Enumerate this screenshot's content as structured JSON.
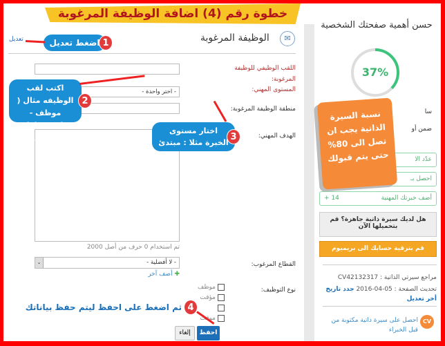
{
  "banner": "خطوة رقم (4) اضافة الوظيفة المرغوبة",
  "section": {
    "title": "الوظيفة المرغوبة",
    "edit_link": "تعديل",
    "icon": "envelope-icon"
  },
  "form": {
    "job_title_label": "اللقب الوظيفي للوظيفة المرغوبة:",
    "job_title_value": "",
    "career_level_label": "المستوى المهني:",
    "career_level_value": "- اختر واحدة -",
    "region_label": "منطقة الوظيفة المرغوبة:",
    "career_goal_label": "الهدف المهني:",
    "char_counter": "تم استخدام 0 حرف من أصل 2000",
    "sector_label": "القطاع المرغوب:",
    "sector_value": "- لا أفضلية -",
    "add_another": "أضف آخر",
    "employment_type_label": "نوع التوظيف:",
    "employment_types": [
      "موظف",
      "مؤقت",
      "",
      "موقت"
    ],
    "save": "احفظ",
    "cancel": "إلغاء"
  },
  "callouts": {
    "c1": {
      "num": "1",
      "text": "اضغط تعديل"
    },
    "c2": {
      "num": "2",
      "text": "اكتب لقب الوظيفه مثال ( موظف - محاسب عامل - مهندس )"
    },
    "c3": {
      "num": "3",
      "text": "اختار مستوى الخبرة مثلا : مبتدئ"
    },
    "c4": {
      "num": "4",
      "text": "ثم اضغط على احفظ ليتم حفظ بياناتك"
    },
    "orange": "نسبة السيرة الذاتية يجب ان تصل الى 80% حتى يتم قبولك"
  },
  "sidebar": {
    "title": "حسن أهمية صفحتك الشخصية",
    "progress_percent": 37,
    "progress_label": "37%",
    "row1": "سا",
    "row2": "ضمن أو",
    "items": [
      {
        "label": "عدّد الا",
        "count": ""
      },
      {
        "label": "احصل بـ",
        "count": ""
      },
      {
        "label": "أضف خبرتك المهنية",
        "count": "14 +"
      }
    ],
    "upload_cv": "هل لديك سيرة ذاتية جاهزة؟ قم بتحميلها الآن",
    "upgrade": "قم بترقية حسابك الى بريميوم",
    "cv_ref": "مراجع سيرتي الذاتية : CV42132317",
    "updated": "تحديث الصفحة : 05-04-2016",
    "renew": "جدد تاريخ أخر تعديل",
    "expert_cv": "احصل على سيرة ذاتية مكتوبة من قبل الخبراء",
    "cv_badge": "CV",
    "colors": {
      "progress": "#3cc47c",
      "orange": "#f5a623",
      "accent": "#1a8fd6"
    }
  }
}
